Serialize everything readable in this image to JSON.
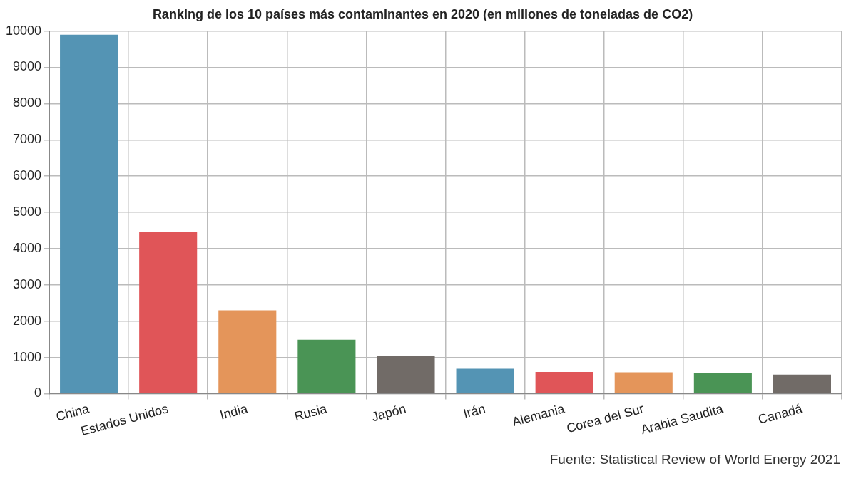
{
  "chart_data": {
    "type": "bar",
    "title": "Ranking de los 10 países más contaminantes en 2020 (en millones de toneladas de CO2)",
    "categories": [
      "China",
      "Estados Unidos",
      "India",
      "Rusia",
      "Japón",
      "Irán",
      "Alemania",
      "Corea del Sur",
      "Arabia Saudita",
      "Canadá"
    ],
    "values": [
      9900,
      4450,
      2300,
      1490,
      1030,
      690,
      600,
      590,
      565,
      525
    ],
    "colors": [
      "#5494b4",
      "#e05558",
      "#e4955a",
      "#4a9455",
      "#716b67",
      "#5494b4",
      "#e05558",
      "#e4955a",
      "#4a9455",
      "#716b67"
    ],
    "ylim": [
      0,
      10000
    ],
    "yticks": [
      0,
      1000,
      2000,
      3000,
      4000,
      5000,
      6000,
      7000,
      8000,
      9000,
      10000
    ],
    "grid": true,
    "legend": false,
    "annotations": [
      "Fuente: Statistical Review of World Energy 2021"
    ]
  }
}
